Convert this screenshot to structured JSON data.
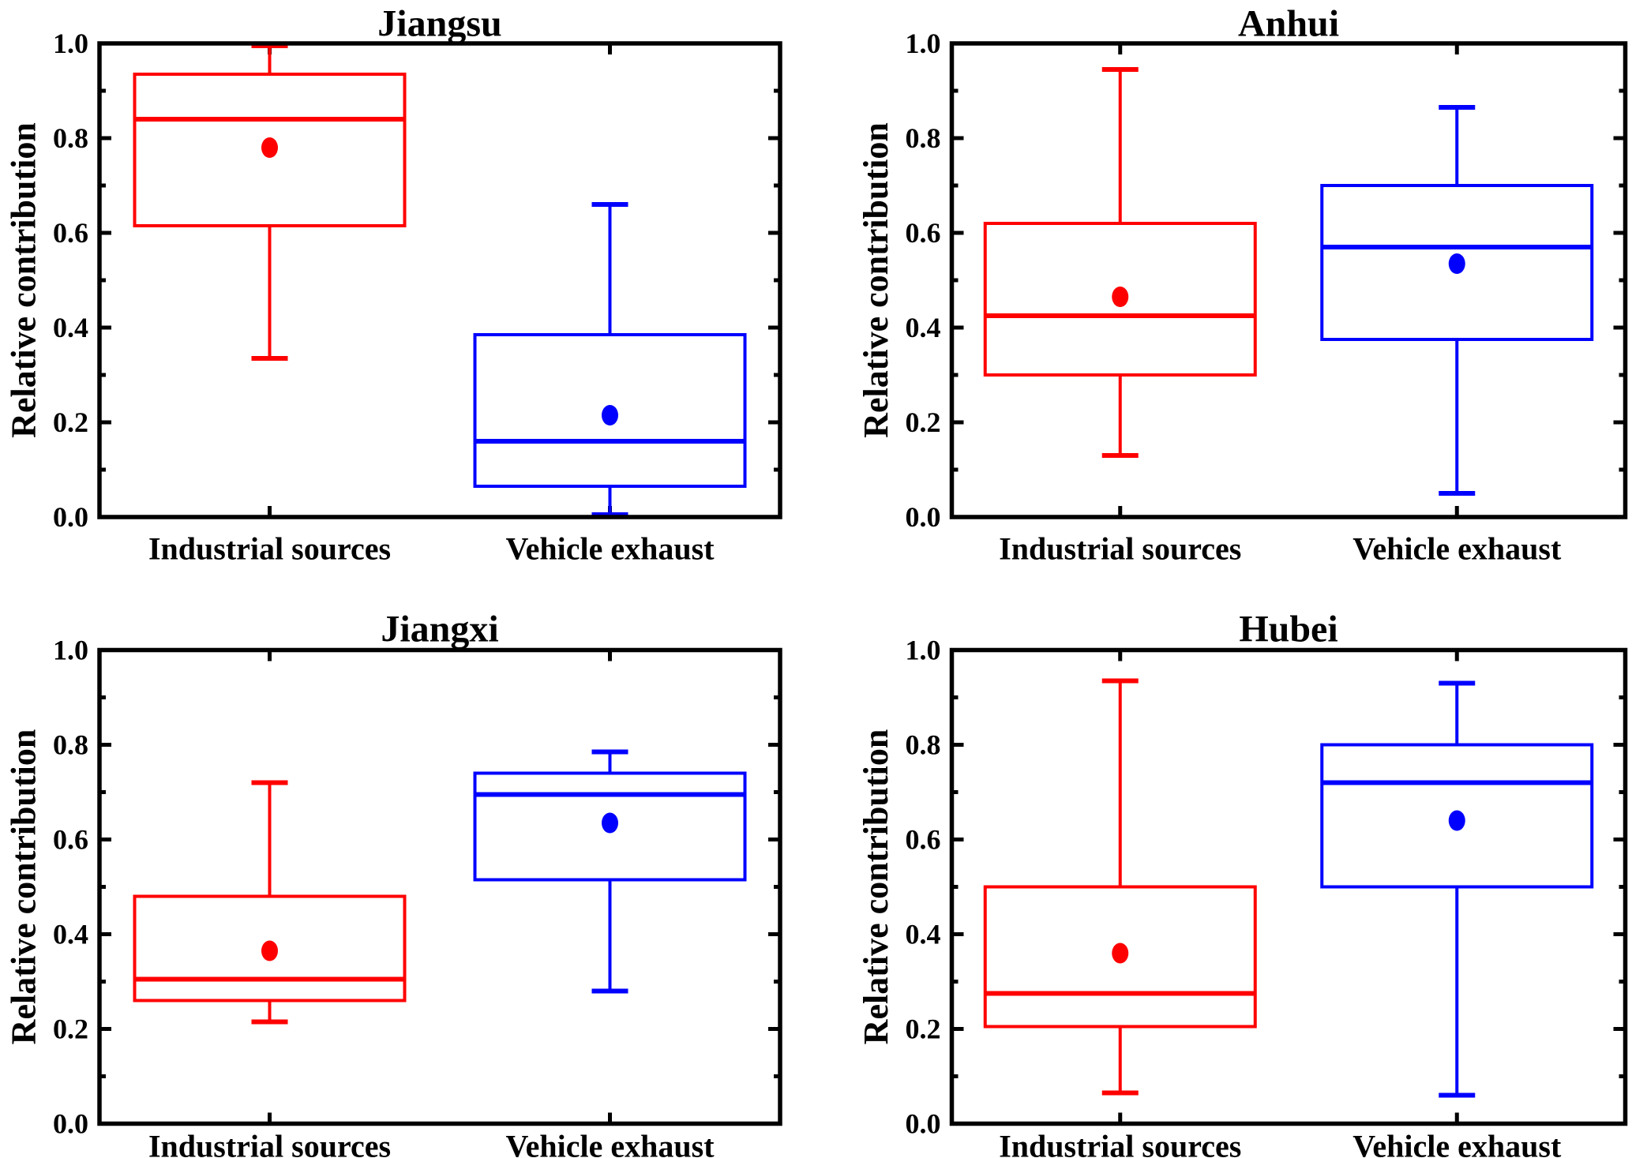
{
  "figure": {
    "background_color": "#ffffff",
    "axis_color": "#000000",
    "ylabel": "Relative contribution",
    "categories": [
      "Industrial sources",
      "Vehicle exhaust"
    ],
    "series_colors": {
      "Industrial sources": "#ff0000",
      "Vehicle exhaust": "#0000ff"
    },
    "y_tick_labels": [
      "0.0",
      "0.2",
      "0.4",
      "0.6",
      "0.8",
      "1.0"
    ]
  },
  "chart_data": [
    {
      "type": "box",
      "title": "Jiangsu",
      "ylabel": "Relative contribution",
      "ylim": [
        0.0,
        1.0
      ],
      "y_major_ticks": [
        0.0,
        0.2,
        0.4,
        0.6,
        0.8,
        1.0
      ],
      "y_minor_ticks": [
        0.1,
        0.3,
        0.5,
        0.7,
        0.9
      ],
      "categories": [
        "Industrial sources",
        "Vehicle exhaust"
      ],
      "series": [
        {
          "name": "Industrial sources",
          "color": "#ff0000",
          "whisker_low": 0.335,
          "q1": 0.615,
          "median": 0.84,
          "mean": 0.78,
          "q3": 0.935,
          "whisker_high": 0.995
        },
        {
          "name": "Vehicle exhaust",
          "color": "#0000ff",
          "whisker_low": 0.005,
          "q1": 0.065,
          "median": 0.16,
          "mean": 0.215,
          "q3": 0.385,
          "whisker_high": 0.66
        }
      ]
    },
    {
      "type": "box",
      "title": "Anhui",
      "ylabel": "Relative contribution",
      "ylim": [
        0.0,
        1.0
      ],
      "y_major_ticks": [
        0.0,
        0.2,
        0.4,
        0.6,
        0.8,
        1.0
      ],
      "y_minor_ticks": [
        0.1,
        0.3,
        0.5,
        0.7,
        0.9
      ],
      "categories": [
        "Industrial sources",
        "Vehicle exhaust"
      ],
      "series": [
        {
          "name": "Industrial sources",
          "color": "#ff0000",
          "whisker_low": 0.13,
          "q1": 0.3,
          "median": 0.425,
          "mean": 0.465,
          "q3": 0.62,
          "whisker_high": 0.945
        },
        {
          "name": "Vehicle exhaust",
          "color": "#0000ff",
          "whisker_low": 0.05,
          "q1": 0.375,
          "median": 0.57,
          "mean": 0.535,
          "q3": 0.7,
          "whisker_high": 0.865
        }
      ]
    },
    {
      "type": "box",
      "title": "Jiangxi",
      "ylabel": "Relative contribution",
      "ylim": [
        0.0,
        1.0
      ],
      "y_major_ticks": [
        0.0,
        0.2,
        0.4,
        0.6,
        0.8,
        1.0
      ],
      "y_minor_ticks": [
        0.1,
        0.3,
        0.5,
        0.7,
        0.9
      ],
      "categories": [
        "Industrial sources",
        "Vehicle exhaust"
      ],
      "series": [
        {
          "name": "Industrial sources",
          "color": "#ff0000",
          "whisker_low": 0.215,
          "q1": 0.26,
          "median": 0.305,
          "mean": 0.365,
          "q3": 0.48,
          "whisker_high": 0.72
        },
        {
          "name": "Vehicle exhaust",
          "color": "#0000ff",
          "whisker_low": 0.28,
          "q1": 0.515,
          "median": 0.695,
          "mean": 0.635,
          "q3": 0.74,
          "whisker_high": 0.785
        }
      ]
    },
    {
      "type": "box",
      "title": "Hubei",
      "ylabel": "Relative contribution",
      "ylim": [
        0.0,
        1.0
      ],
      "y_major_ticks": [
        0.0,
        0.2,
        0.4,
        0.6,
        0.8,
        1.0
      ],
      "y_minor_ticks": [
        0.1,
        0.3,
        0.5,
        0.7,
        0.9
      ],
      "categories": [
        "Industrial sources",
        "Vehicle exhaust"
      ],
      "series": [
        {
          "name": "Industrial sources",
          "color": "#ff0000",
          "whisker_low": 0.065,
          "q1": 0.205,
          "median": 0.275,
          "mean": 0.36,
          "q3": 0.5,
          "whisker_high": 0.935
        },
        {
          "name": "Vehicle exhaust",
          "color": "#0000ff",
          "whisker_low": 0.06,
          "q1": 0.5,
          "median": 0.72,
          "mean": 0.64,
          "q3": 0.8,
          "whisker_high": 0.93
        }
      ]
    }
  ]
}
